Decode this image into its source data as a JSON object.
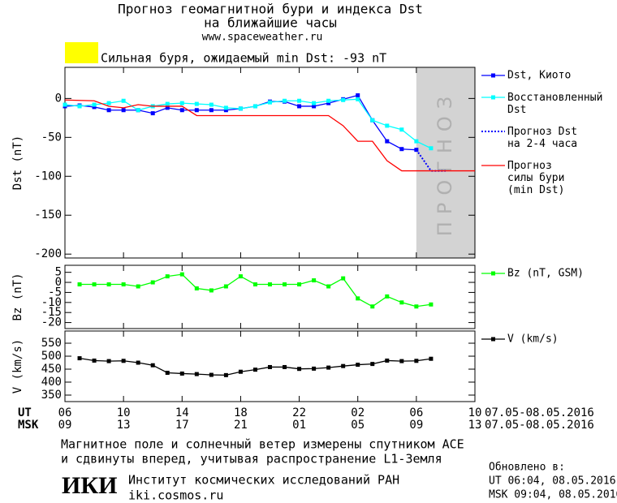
{
  "header": {
    "title_lines": [
      "Прогноз геомагнитной бури и индекса Dst",
      "на ближайшие часы"
    ],
    "url": "www.spaceweather.ru"
  },
  "storm": {
    "color": "#ffff00",
    "label": "Сильная буря, ожидаемый min Dst: -93 nT"
  },
  "chart_data": [
    {
      "type": "line",
      "ylabel": "Dst (nT)",
      "xlim": [
        0,
        28
      ],
      "ylim": [
        -205,
        40
      ],
      "yticks": [
        0,
        -50,
        -100,
        -150,
        -200
      ],
      "forecast_region": {
        "xlim": [
          24,
          28
        ],
        "label": "ПРОГНОЗ",
        "color": "#d3d3d3"
      },
      "series": [
        {
          "name": "Dst, Киото",
          "color": "#0000ff",
          "marker": "square",
          "line_style": "solid",
          "x": [
            0,
            1,
            2,
            3,
            4,
            5,
            6,
            7,
            8,
            9,
            10,
            11,
            12,
            13,
            14,
            15,
            16,
            17,
            18,
            19,
            20,
            21,
            22,
            23,
            24
          ],
          "values": [
            -10,
            -9,
            -11,
            -15,
            -15,
            -15,
            -19,
            -12,
            -15,
            -15,
            -15,
            -15,
            -13,
            -10,
            -4,
            -4,
            -10,
            -10,
            -6,
            -1,
            4,
            -28,
            -55,
            -65,
            -66
          ]
        },
        {
          "name": "Восстановленный\nDst",
          "color": "#00ffff",
          "marker": "square",
          "line_style": "solid",
          "x": [
            0,
            1,
            2,
            3,
            4,
            5,
            6,
            7,
            8,
            9,
            10,
            11,
            12,
            13,
            14,
            15,
            16,
            17,
            18,
            19,
            20,
            21,
            22,
            23,
            24,
            25
          ],
          "values": [
            -8,
            -10,
            -8,
            -6,
            -3,
            -15,
            -10,
            -7,
            -6,
            -7,
            -8,
            -12,
            -13,
            -10,
            -5,
            -3,
            -3,
            -6,
            -3,
            -2,
            -1,
            -28,
            -35,
            -40,
            -55,
            -64
          ]
        },
        {
          "name": "Прогноз Dst\nна 2-4 часа",
          "color": "#0000ff",
          "marker": null,
          "line_style": "dotted",
          "x": [
            24,
            25,
            26
          ],
          "values": [
            -66,
            -93,
            -93
          ]
        },
        {
          "name": "Прогноз\nсилы бури\n(min Dst)",
          "color": "#ff0000",
          "marker": null,
          "line_style": "solid",
          "x": [
            0,
            2,
            3,
            4,
            5,
            6,
            8,
            9,
            18,
            19,
            20,
            21,
            22,
            23,
            28
          ],
          "values": [
            -2,
            -3,
            -10,
            -12,
            -8,
            -10,
            -10,
            -22,
            -22,
            -35,
            -55,
            -55,
            -80,
            -93,
            -93
          ]
        }
      ]
    },
    {
      "type": "line",
      "ylabel": "Bz (nT)",
      "xlim": [
        0,
        28
      ],
      "ylim": [
        -23,
        8.5
      ],
      "yticks": [
        5,
        0,
        -5,
        -10,
        -15,
        -20
      ],
      "series": [
        {
          "name": "Bz (nT, GSM)",
          "color": "#00ff00",
          "marker": "square",
          "line_style": "solid",
          "x": [
            1,
            2,
            3,
            4,
            5,
            6,
            7,
            8,
            9,
            10,
            11,
            12,
            13,
            14,
            15,
            16,
            17,
            18,
            19,
            20,
            21,
            22,
            23,
            24,
            25
          ],
          "values": [
            -1,
            -1,
            -1,
            -1,
            -2,
            0,
            3,
            4,
            -3,
            -4,
            -2,
            3,
            -1,
            -1,
            -1,
            -1,
            1,
            -2,
            2,
            -8,
            -12,
            -7,
            -10,
            -12,
            -11
          ]
        }
      ]
    },
    {
      "type": "line",
      "ylabel": "V (km/s)",
      "xlim": [
        0,
        28
      ],
      "ylim": [
        325,
        597
      ],
      "yticks": [
        550,
        500,
        450,
        400,
        350
      ],
      "xticks": [
        {
          "value": 0,
          "label": "06"
        },
        {
          "value": 4,
          "label": "10"
        },
        {
          "value": 8,
          "label": "14"
        },
        {
          "value": 12,
          "label": "18"
        },
        {
          "value": 16,
          "label": "22"
        },
        {
          "value": 20,
          "label": "02"
        },
        {
          "value": 24,
          "label": "06"
        },
        {
          "value": 28,
          "label": "10"
        }
      ],
      "x2ticks": [
        {
          "value": 0,
          "label": "09"
        },
        {
          "value": 4,
          "label": "13"
        },
        {
          "value": 8,
          "label": "17"
        },
        {
          "value": 12,
          "label": "21"
        },
        {
          "value": 16,
          "label": "01"
        },
        {
          "value": 20,
          "label": "05"
        },
        {
          "value": 24,
          "label": "09"
        },
        {
          "value": 28,
          "label": "13"
        }
      ],
      "xlabel": "UT",
      "x2label": "MSK",
      "date_range": "07.05-08.05.2016",
      "date_range2": "07.05-08.05.2016",
      "series": [
        {
          "name": "V (km/s)",
          "color": "#000000",
          "marker": "square",
          "line_style": "solid",
          "x": [
            1,
            2,
            3,
            4,
            5,
            6,
            7,
            8,
            9,
            10,
            11,
            12,
            13,
            14,
            15,
            16,
            17,
            18,
            19,
            20,
            21,
            22,
            23,
            24,
            25
          ],
          "values": [
            492,
            483,
            481,
            482,
            475,
            465,
            436,
            433,
            431,
            428,
            427,
            440,
            448,
            458,
            458,
            451,
            452,
            456,
            462,
            467,
            470,
            483,
            481,
            482,
            490
          ]
        }
      ]
    }
  ],
  "footer": {
    "note_lines": [
      "Магнитное поле и солнечный ветер измерены спутником ACE",
      "и сдвинуты вперед, учитывая распространение L1-Земля"
    ],
    "logo": "ИКИ",
    "institute": "Институт космических исследований РАН",
    "site": "iki.cosmos.ru",
    "updated_title": "Обновлено в:",
    "updated_ut": "UT  06:04, 08.05.2016",
    "updated_msk": "MSK 09:04, 08.05.2016"
  }
}
